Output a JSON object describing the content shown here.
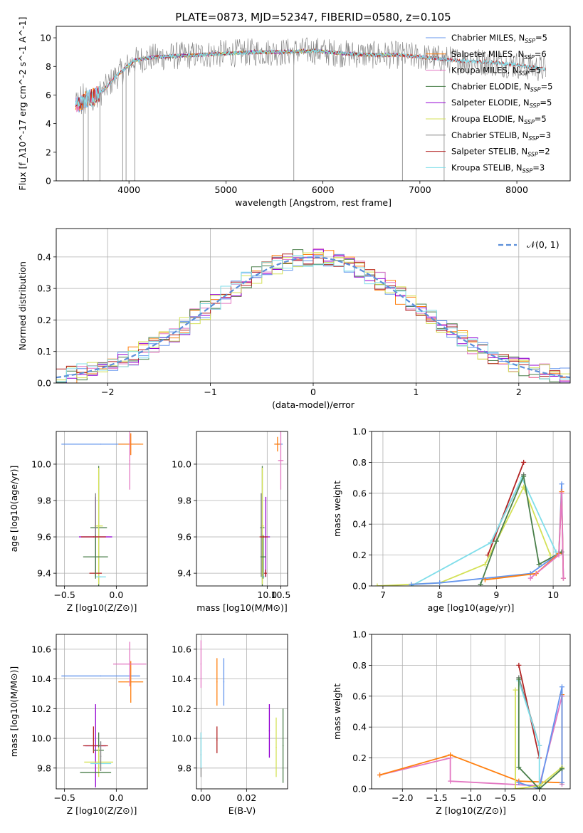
{
  "figure_title": "PLATE=0873, MJD=52347, FIBERID=0580, z=0.105",
  "colors": {
    "chabrier_miles": "#6495ed",
    "salpeter_miles": "#ff7f0e",
    "kroupa_miles": "#e377c2",
    "chabrier_elodie": "#4a7f4a",
    "salpeter_elodie": "#9400d3",
    "kroupa_elodie": "#d4e157",
    "chabrier_stelib": "#808080",
    "salpeter_stelib": "#b22222",
    "kroupa_stelib": "#80deea",
    "normal": "#5b8fd9"
  },
  "chart_data": [
    {
      "id": "spectrum",
      "type": "line",
      "title": "PLATE=0873, MJD=52347, FIBERID=0580, z=0.105",
      "xlabel": "wavelength [Angstrom, rest frame]",
      "ylabel": "Flux [f_λ10^-17 erg cm^-2 s^-1 A^-1]",
      "xlim": [
        3250,
        8550
      ],
      "ylim": [
        0,
        10.8
      ],
      "xticks": [
        "4000",
        "5000",
        "6000",
        "7000",
        "8000"
      ],
      "yticks": [
        "0",
        "2",
        "4",
        "6",
        "8",
        "10"
      ],
      "legend_position": "right",
      "legend": [
        "Chabrier MILES, N_SSP=5",
        "Salpeter MILES, N_SSP=6",
        "Kroupa MILES, N_SSP=5",
        "Chabrier ELODIE, N_SSP=5",
        "Salpeter ELODIE, N_SSP=5",
        "Kroupa ELODIE, N_SSP=5",
        "Chabrier STELIB, N_SSP=3",
        "Salpeter STELIB, N_SSP=2",
        "Kroupa STELIB, N_SSP=3"
      ],
      "continuum": {
        "x": [
          3450,
          3550,
          3650,
          3750,
          3850,
          3950,
          4050,
          4200,
          4400,
          4700,
          5000,
          5300,
          5600,
          5900,
          6200,
          6500,
          6800,
          7100,
          7400,
          7700,
          8000,
          8300
        ],
        "y": [
          5.3,
          5.6,
          5.9,
          6.4,
          7.2,
          7.8,
          8.4,
          8.6,
          8.7,
          8.8,
          8.9,
          9.0,
          9.0,
          9.1,
          8.9,
          8.8,
          8.8,
          8.6,
          8.4,
          8.3,
          8.1,
          7.8
        ]
      }
    },
    {
      "id": "residuals",
      "type": "line",
      "xlabel": "(data-model)/error",
      "ylabel": "Normed distribution",
      "xlim": [
        -2.5,
        2.5
      ],
      "ylim": [
        0,
        0.49
      ],
      "xticks": [
        "−2",
        "−1",
        "0",
        "1",
        "2"
      ],
      "yticks": [
        "0.0",
        "0.1",
        "0.2",
        "0.3",
        "0.4"
      ],
      "legend": [
        "𝒩(0, 1)"
      ],
      "legend_position": "top-right",
      "bin_width": 0.1
    },
    {
      "id": "age_vs_Z",
      "type": "scatter",
      "xlabel": "Z [log10(Z/Z⊙)]",
      "ylabel": "age  [log10(age/yr)]",
      "xlim": [
        -0.58,
        0.3
      ],
      "ylim": [
        9.33,
        10.18
      ],
      "xticks": [
        "−0.5",
        "0.0"
      ],
      "yticks": [
        "9.4",
        "9.6",
        "9.8",
        "10.0"
      ],
      "points": [
        {
          "x": -0.15,
          "y": 10.11,
          "xerr": 0.38,
          "yerr": 0.0,
          "c": "chabrier_miles"
        },
        {
          "x": 0.14,
          "y": 10.11,
          "xerr": 0.12,
          "yerr": 0.06,
          "c": "salpeter_miles"
        },
        {
          "x": 0.13,
          "y": 10.02,
          "xerr": 0.0,
          "yerr": 0.16,
          "c": "kroupa_miles"
        },
        {
          "x": -0.17,
          "y": 9.65,
          "xerr": 0.08,
          "yerr": 0.34,
          "c": "chabrier_elodie"
        },
        {
          "x": -0.2,
          "y": 9.6,
          "xerr": 0.16,
          "yerr": 0.22,
          "c": "salpeter_elodie"
        },
        {
          "x": -0.17,
          "y": 9.66,
          "xerr": 0.04,
          "yerr": 0.32,
          "c": "kroupa_elodie"
        },
        {
          "x": -0.2,
          "y": 9.61,
          "xerr": 0.0,
          "yerr": 0.23,
          "c": "chabrier_stelib"
        },
        {
          "x": -0.2,
          "y": 9.4,
          "xerr": 0.06,
          "yerr": 0.02,
          "c": "salpeter_stelib"
        },
        {
          "x": -0.15,
          "y": 9.38,
          "xerr": 0.05,
          "yerr": 0.0,
          "c": "kroupa_stelib"
        },
        {
          "x": -0.2,
          "y": 9.49,
          "xerr": 0.12,
          "yerr": 0.12,
          "c": "chabrier_elodie"
        },
        {
          "x": -0.22,
          "y": 9.6,
          "xerr": 0.12,
          "yerr": 0.0,
          "c": "salpeter_stelib"
        }
      ]
    },
    {
      "id": "age_vs_mass",
      "type": "scatter",
      "xlabel": "mass [log10(M/M⊙)]",
      "xlim": [
        7.4,
        10.75
      ],
      "ylim": [
        9.33,
        10.18
      ],
      "xticks": [
        "10.0",
        "10.5"
      ],
      "yticks": [
        "9.4",
        "9.6",
        "9.8",
        "10.0"
      ],
      "points": [
        {
          "x": 10.42,
          "y": 10.11,
          "xerr": 0.15,
          "yerr": 0.0,
          "c": "chabrier_miles"
        },
        {
          "x": 10.38,
          "y": 10.11,
          "xerr": 0.12,
          "yerr": 0.04,
          "c": "salpeter_miles"
        },
        {
          "x": 10.5,
          "y": 10.02,
          "xerr": 0.1,
          "yerr": 0.16,
          "c": "kroupa_miles"
        },
        {
          "x": 9.82,
          "y": 9.65,
          "xerr": 0.08,
          "yerr": 0.34,
          "c": "chabrier_elodie"
        },
        {
          "x": 9.95,
          "y": 9.6,
          "xerr": 0.15,
          "yerr": 0.22,
          "c": "salpeter_elodie"
        },
        {
          "x": 9.82,
          "y": 9.66,
          "xerr": 0.06,
          "yerr": 0.32,
          "c": "kroupa_elodie"
        },
        {
          "x": 9.78,
          "y": 9.61,
          "xerr": 0.0,
          "yerr": 0.23,
          "c": "chabrier_stelib"
        },
        {
          "x": 9.94,
          "y": 9.4,
          "xerr": 0.05,
          "yerr": 0.02,
          "c": "salpeter_stelib"
        },
        {
          "x": 9.85,
          "y": 9.38,
          "xerr": 0.05,
          "yerr": 0.0,
          "c": "kroupa_stelib"
        },
        {
          "x": 9.85,
          "y": 9.49,
          "xerr": 0.1,
          "yerr": 0.12,
          "c": "chabrier_elodie"
        },
        {
          "x": 9.87,
          "y": 9.6,
          "xerr": 0.15,
          "yerr": 0.0,
          "c": "salpeter_stelib"
        }
      ]
    },
    {
      "id": "weight_vs_age",
      "type": "line",
      "xlabel": "age  [log10(age/yr)]",
      "ylabel": "mass weight",
      "xlim": [
        6.8,
        10.3
      ],
      "ylim": [
        0,
        1.0
      ],
      "xticks": [
        "7",
        "8",
        "9",
        "10"
      ],
      "yticks": [
        "0.0",
        "0.2",
        "0.4",
        "0.6",
        "0.8",
        "1.0"
      ],
      "series": [
        {
          "c": "salpeter_stelib",
          "x": [
            8.85,
            9.48
          ],
          "y": [
            0.2,
            0.8
          ]
        },
        {
          "c": "chabrier_stelib",
          "x": [
            8.9,
            9.48
          ],
          "y": [
            0.28,
            0.72
          ]
        },
        {
          "c": "kroupa_stelib",
          "x": [
            7.5,
            8.9,
            9.45,
            10.05
          ],
          "y": [
            0.0,
            0.28,
            0.7,
            0.22
          ]
        },
        {
          "c": "kroupa_elodie",
          "x": [
            6.9,
            8.0,
            8.8,
            9.48,
            9.95
          ],
          "y": [
            0.0,
            0.02,
            0.14,
            0.64,
            0.2
          ]
        },
        {
          "c": "chabrier_elodie",
          "x": [
            8.72,
            9.0,
            9.48,
            9.75,
            10.15
          ],
          "y": [
            0.01,
            0.29,
            0.71,
            0.14,
            0.22
          ]
        },
        {
          "c": "chabrier_miles",
          "x": [
            7.5,
            8.0,
            9.6,
            10.1,
            10.15,
            10.18
          ],
          "y": [
            0.01,
            0.02,
            0.08,
            0.21,
            0.66,
            0.05
          ]
        },
        {
          "c": "salpeter_miles",
          "x": [
            8.8,
            9.7,
            10.1,
            10.15,
            10.18
          ],
          "y": [
            0.04,
            0.08,
            0.21,
            0.61,
            0.05
          ]
        },
        {
          "c": "kroupa_miles",
          "x": [
            9.6,
            10.1,
            10.15,
            10.18
          ],
          "y": [
            0.05,
            0.2,
            0.6,
            0.05
          ]
        }
      ]
    },
    {
      "id": "mass_vs_Z",
      "type": "scatter",
      "xlabel": "Z [log10(Z/Z⊙)]",
      "ylabel": "mass [log10(M/M⊙)]",
      "xlim": [
        -0.58,
        0.3
      ],
      "ylim": [
        9.66,
        10.7
      ],
      "xticks": [
        "−0.5",
        "0.0"
      ],
      "yticks": [
        "9.8",
        "10.0",
        "10.2",
        "10.4",
        "10.6"
      ],
      "points": [
        {
          "x": -0.15,
          "y": 10.42,
          "xerr": 0.38,
          "yerr": 0.0,
          "c": "chabrier_miles"
        },
        {
          "x": 0.14,
          "y": 10.38,
          "xerr": 0.12,
          "yerr": 0.14,
          "c": "salpeter_miles"
        },
        {
          "x": 0.13,
          "y": 10.5,
          "xerr": 0.16,
          "yerr": 0.15,
          "c": "kroupa_miles"
        },
        {
          "x": -0.2,
          "y": 9.95,
          "xerr": 0.1,
          "yerr": 0.28,
          "c": "salpeter_elodie"
        },
        {
          "x": -0.22,
          "y": 9.99,
          "xerr": 0.0,
          "yerr": 0.09,
          "c": "salpeter_stelib"
        },
        {
          "x": -0.2,
          "y": 9.95,
          "xerr": 0.12,
          "yerr": 0.0,
          "c": "salpeter_stelib"
        },
        {
          "x": -0.17,
          "y": 9.92,
          "xerr": 0.05,
          "yerr": 0.12,
          "c": "chabrier_elodie"
        },
        {
          "x": -0.17,
          "y": 9.84,
          "xerr": 0.14,
          "yerr": 0.1,
          "c": "kroupa_elodie"
        },
        {
          "x": -0.15,
          "y": 9.83,
          "xerr": 0.1,
          "yerr": 0.0,
          "c": "kroupa_stelib"
        },
        {
          "x": -0.2,
          "y": 9.77,
          "xerr": 0.15,
          "yerr": 0.0,
          "c": "chabrier_elodie"
        },
        {
          "x": -0.15,
          "y": 9.88,
          "xerr": 0.0,
          "yerr": 0.1,
          "c": "chabrier_stelib"
        }
      ]
    },
    {
      "id": "mass_vs_ebv",
      "type": "scatter",
      "xlabel": "E(B-V)",
      "xlim": [
        -0.002,
        0.038
      ],
      "ylim": [
        9.66,
        10.7
      ],
      "xticks": [
        "0.00",
        "0.02"
      ],
      "yticks": [
        "9.8",
        "10.0",
        "10.2",
        "10.4",
        "10.6"
      ],
      "points": [
        {
          "x": 0.0,
          "y": 10.5,
          "xerr": 0.0,
          "yerr": 0.16,
          "c": "kroupa_miles"
        },
        {
          "x": 0.007,
          "y": 10.38,
          "xerr": 0.0,
          "yerr": 0.16,
          "c": "salpeter_miles"
        },
        {
          "x": 0.01,
          "y": 10.38,
          "xerr": 0.0,
          "yerr": 0.16,
          "c": "chabrier_miles"
        },
        {
          "x": 0.007,
          "y": 9.99,
          "xerr": 0.0,
          "yerr": 0.09,
          "c": "salpeter_stelib"
        },
        {
          "x": 0.0,
          "y": 9.89,
          "xerr": 0.0,
          "yerr": 0.15,
          "c": "chabrier_stelib"
        },
        {
          "x": 0.0,
          "y": 9.92,
          "xerr": 0.0,
          "yerr": 0.12,
          "c": "kroupa_stelib"
        },
        {
          "x": 0.03,
          "y": 10.05,
          "xerr": 0.0,
          "yerr": 0.18,
          "c": "salpeter_elodie"
        },
        {
          "x": 0.033,
          "y": 9.94,
          "xerr": 0.0,
          "yerr": 0.2,
          "c": "kroupa_elodie"
        },
        {
          "x": 0.036,
          "y": 9.95,
          "xerr": 0.0,
          "yerr": 0.25,
          "c": "chabrier_elodie"
        }
      ]
    },
    {
      "id": "weight_vs_Z",
      "type": "line",
      "xlabel": "Z [log10(Z/Z⊙)]",
      "ylabel": "mass weight",
      "xlim": [
        -2.45,
        0.45
      ],
      "ylim": [
        0,
        1.0
      ],
      "xticks": [
        "−2.0",
        "−1.5",
        "−1.0",
        "−0.5",
        "0.0"
      ],
      "yticks": [
        "0.0",
        "0.2",
        "0.4",
        "0.6",
        "0.8",
        "1.0"
      ],
      "series": [
        {
          "c": "kroupa_miles",
          "x": [
            -2.33,
            -1.3,
            -1.3,
            0.0,
            0.33,
            0.33
          ],
          "y": [
            0.09,
            0.2,
            0.05,
            0.02,
            0.6,
            0.03
          ]
        },
        {
          "c": "salpeter_miles",
          "x": [
            -2.33,
            -1.3,
            -0.3,
            0.33,
            0.33,
            0.33
          ],
          "y": [
            0.09,
            0.22,
            0.05,
            0.04,
            0.61,
            0.04
          ]
        },
        {
          "c": "chabrier_miles",
          "x": [
            -0.3,
            0.0,
            0.33,
            0.33
          ],
          "y": [
            0.04,
            0.0,
            0.66,
            0.04
          ]
        },
        {
          "c": "salpeter_stelib",
          "x": [
            -0.3,
            0.0
          ],
          "y": [
            0.8,
            0.2
          ]
        },
        {
          "c": "chabrier_stelib",
          "x": [
            -0.3,
            0.0
          ],
          "y": [
            0.72,
            0.28
          ]
        },
        {
          "c": "kroupa_stelib",
          "x": [
            -0.3,
            0.0,
            0.0
          ],
          "y": [
            0.7,
            0.28,
            0.0
          ]
        },
        {
          "c": "kroupa_elodie",
          "x": [
            -0.35,
            -0.35,
            0.0,
            0.33
          ],
          "y": [
            0.64,
            0.0,
            0.02,
            0.14
          ]
        },
        {
          "c": "chabrier_elodie",
          "x": [
            -0.3,
            -0.3,
            0.0,
            0.33
          ],
          "y": [
            0.71,
            0.14,
            0.0,
            0.13
          ]
        }
      ]
    }
  ]
}
